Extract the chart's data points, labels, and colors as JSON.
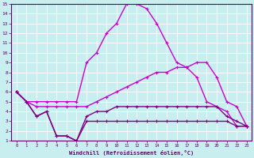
{
  "xlabel": "Windchill (Refroidissement éolien,°C)",
  "xlim": [
    -0.5,
    23.5
  ],
  "ylim": [
    1,
    15
  ],
  "yticks": [
    1,
    2,
    3,
    4,
    5,
    6,
    7,
    8,
    9,
    10,
    11,
    12,
    13,
    14,
    15
  ],
  "xticks": [
    0,
    1,
    2,
    3,
    4,
    5,
    6,
    7,
    8,
    9,
    10,
    11,
    12,
    13,
    14,
    15,
    16,
    17,
    18,
    19,
    20,
    21,
    22,
    23
  ],
  "bg_color": "#c8eef0",
  "grid_color": "#ffffff",
  "lines": [
    {
      "x": [
        0,
        1,
        2,
        3,
        4,
        5,
        6,
        7,
        8,
        9,
        10,
        11,
        12,
        13,
        14,
        15,
        16,
        17,
        18,
        19,
        20,
        21,
        22,
        23
      ],
      "y": [
        6.0,
        5.0,
        5.0,
        5.0,
        5.0,
        5.0,
        5.0,
        9.0,
        10.0,
        12.0,
        13.0,
        15.0,
        15.0,
        14.5,
        13.0,
        11.0,
        9.0,
        8.5,
        7.5,
        5.0,
        4.5,
        4.0,
        2.5,
        2.5
      ],
      "color": "#cc00cc",
      "lw": 1.0
    },
    {
      "x": [
        0,
        1,
        2,
        3,
        4,
        5,
        6,
        7,
        8,
        9,
        10,
        11,
        12,
        13,
        14,
        15,
        16,
        17,
        18,
        19,
        20,
        21,
        22,
        23
      ],
      "y": [
        6.0,
        5.0,
        4.5,
        4.5,
        4.5,
        4.5,
        4.5,
        4.5,
        5.0,
        5.5,
        6.0,
        6.5,
        7.0,
        7.5,
        8.0,
        8.0,
        8.5,
        8.5,
        9.0,
        9.0,
        7.5,
        5.0,
        4.5,
        2.5
      ],
      "color": "#cc00cc",
      "lw": 1.0
    },
    {
      "x": [
        0,
        1,
        2,
        3,
        4,
        5,
        6,
        7,
        8,
        9,
        10,
        11,
        12,
        13,
        14,
        15,
        16,
        17,
        18,
        19,
        20,
        21,
        22,
        23
      ],
      "y": [
        6.0,
        5.0,
        3.5,
        4.0,
        1.5,
        1.5,
        1.0,
        3.0,
        3.0,
        3.0,
        3.0,
        3.0,
        3.0,
        3.0,
        3.0,
        3.0,
        3.0,
        3.0,
        3.0,
        3.0,
        3.0,
        3.0,
        2.5,
        2.5
      ],
      "color": "#800080",
      "lw": 1.0
    },
    {
      "x": [
        0,
        1,
        2,
        3,
        4,
        5,
        6,
        7,
        8,
        9,
        10,
        11,
        12,
        13,
        14,
        15,
        16,
        17,
        18,
        19,
        20,
        21,
        22,
        23
      ],
      "y": [
        6.0,
        5.0,
        3.5,
        4.0,
        1.5,
        1.5,
        1.0,
        3.5,
        4.0,
        4.0,
        4.5,
        4.5,
        4.5,
        4.5,
        4.5,
        4.5,
        4.5,
        4.5,
        4.5,
        4.5,
        4.5,
        3.5,
        3.0,
        2.5
      ],
      "color": "#800080",
      "lw": 1.0
    }
  ]
}
